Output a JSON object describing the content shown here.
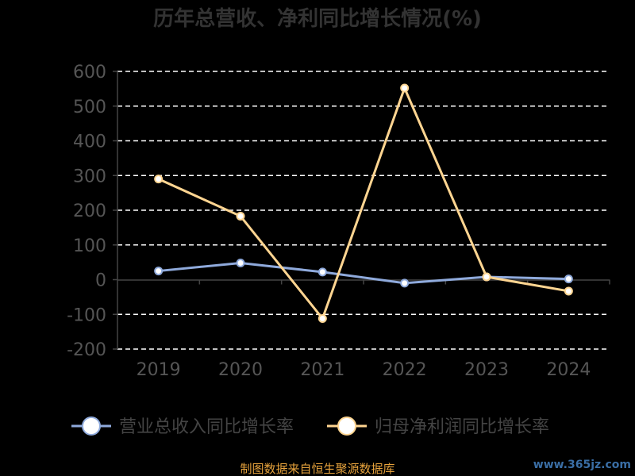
{
  "chart_data": {
    "type": "line",
    "title": "历年总营收、净利同比增长情况(%)",
    "categories": [
      "2019",
      "2020",
      "2021",
      "2022",
      "2023",
      "2024"
    ],
    "yticks": [
      "600",
      "500",
      "400",
      "300",
      "200",
      "100",
      "0",
      "-100",
      "-200"
    ],
    "ylim": [
      -200,
      600
    ],
    "grid": true,
    "legend_position": "bottom",
    "series": [
      {
        "name": "营业总收入同比增长率",
        "color": "#8faadc",
        "values": [
          25,
          48,
          22,
          -10,
          8,
          2
        ]
      },
      {
        "name": "归母净利润同比增长率",
        "color": "#ffd591",
        "values": [
          290,
          183,
          -112,
          552,
          8,
          -33
        ]
      }
    ],
    "source": "制图数据来自恒生聚源数据库"
  },
  "watermark": "www.365jz.com"
}
